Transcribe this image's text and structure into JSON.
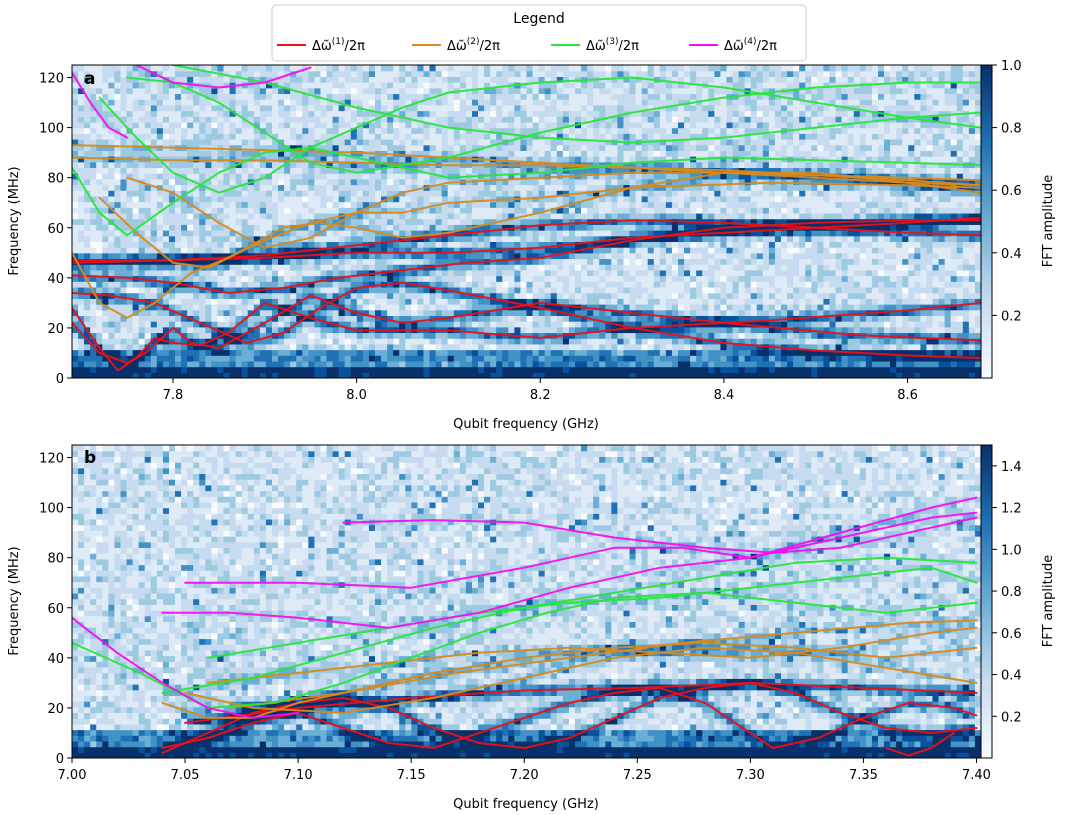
{
  "legend": {
    "title": "Legend",
    "entries": [
      {
        "label": "Δω̃(1)/2π",
        "base": "Δω̃",
        "sup": "(1)",
        "tail": "/2π",
        "color": "#e8121a"
      },
      {
        "label": "Δω̃(2)/2π",
        "base": "Δω̃",
        "sup": "(2)",
        "tail": "/2π",
        "color": "#d68a1f"
      },
      {
        "label": "Δω̃(3)/2π",
        "base": "Δω̃",
        "sup": "(3)",
        "tail": "/2π",
        "color": "#27e63a"
      },
      {
        "label": "Δω̃(4)/2π",
        "base": "Δω̃",
        "sup": "(4)",
        "tail": "/2π",
        "color": "#f50ff0"
      }
    ]
  },
  "chart_data": [
    {
      "panel": "a",
      "type": "heatmap",
      "xlabel": "Qubit frequency (GHz)",
      "ylabel": "Frequency (MHz)",
      "colorbar_label": "FFT amplitude",
      "colormap": "Blues",
      "xlim": [
        7.69,
        8.68
      ],
      "ylim": [
        0,
        125
      ],
      "xticks": [
        7.8,
        8.0,
        8.2,
        8.4,
        8.6
      ],
      "xtick_labels": [
        "7.8",
        "8.0",
        "8.2",
        "8.4",
        "8.6"
      ],
      "yticks": [
        0,
        20,
        40,
        60,
        80,
        100,
        120
      ],
      "ytick_labels": [
        "0",
        "20",
        "40",
        "60",
        "80",
        "100",
        "120"
      ],
      "colorbar_range": [
        0,
        1.0
      ],
      "colorbar_ticks": [
        0.2,
        0.4,
        0.6,
        0.8,
        1.0
      ],
      "colorbar_tick_labels": [
        "0.2",
        "0.4",
        "0.6",
        "0.8",
        "1.0"
      ],
      "series": [
        {
          "order": 1,
          "x": [
            7.69,
            7.72,
            7.74,
            7.76,
            7.78,
            7.8,
            7.83,
            7.86,
            7.9,
            7.95,
            8.0,
            8.1,
            8.2,
            8.3,
            8.45,
            8.6,
            8.68
          ],
          "y": [
            28,
            12,
            3,
            8,
            16,
            14,
            13,
            18,
            30,
            24,
            19,
            19,
            16,
            20,
            23,
            27,
            30
          ]
        },
        {
          "order": 1,
          "x": [
            7.69,
            7.72,
            7.75,
            7.77,
            7.8,
            7.82,
            7.85,
            7.9,
            7.95,
            8.0,
            8.05,
            8.1,
            8.2,
            8.3,
            8.4,
            8.55,
            8.68
          ],
          "y": [
            22,
            10,
            6,
            10,
            20,
            14,
            12,
            22,
            33,
            26,
            22,
            24,
            30,
            26,
            22,
            17,
            15
          ]
        },
        {
          "order": 1,
          "x": [
            7.69,
            7.73,
            7.78,
            7.83,
            7.88,
            7.92,
            7.96,
            8.0,
            8.05,
            8.1,
            8.2,
            8.3,
            8.4,
            8.5,
            8.6,
            8.68
          ],
          "y": [
            34,
            33,
            30,
            22,
            14,
            18,
            28,
            36,
            38,
            35,
            28,
            20,
            14,
            11,
            9,
            8
          ]
        },
        {
          "order": 1,
          "x": [
            7.69,
            7.75,
            7.8,
            7.86,
            7.92,
            7.98,
            8.05,
            8.12,
            8.2,
            8.3,
            8.4,
            8.5,
            8.6,
            8.68
          ],
          "y": [
            41,
            40,
            38,
            34,
            36,
            40,
            43,
            46,
            48,
            55,
            60,
            62,
            63,
            63
          ]
        },
        {
          "order": 1,
          "x": [
            7.69,
            7.8,
            7.9,
            8.0,
            8.1,
            8.2,
            8.3,
            8.4,
            8.5,
            8.6,
            8.68
          ],
          "y": [
            47,
            47,
            48,
            50,
            50,
            52,
            56,
            58,
            60,
            62,
            64
          ]
        },
        {
          "order": 1,
          "x": [
            7.69,
            7.8,
            7.9,
            8.0,
            8.1,
            8.2,
            8.3,
            8.4,
            8.5,
            8.6,
            8.68
          ],
          "y": [
            46,
            47,
            49,
            53,
            57,
            61,
            63,
            62,
            60,
            58,
            57
          ]
        },
        {
          "order": 2,
          "x": [
            7.69,
            7.72,
            7.75,
            7.78,
            7.82,
            7.86,
            7.9,
            7.95,
            8.0,
            8.05,
            8.1,
            8.2,
            8.3,
            8.45,
            8.6,
            8.68
          ],
          "y": [
            50,
            30,
            24,
            30,
            42,
            48,
            55,
            62,
            66,
            66,
            70,
            72,
            76,
            78,
            77,
            76
          ]
        },
        {
          "order": 2,
          "x": [
            7.72,
            7.76,
            7.8,
            7.84,
            7.88,
            7.92,
            7.96,
            8.0,
            8.05,
            8.1,
            8.2,
            8.3,
            8.4,
            8.5,
            8.6,
            8.68
          ],
          "y": [
            72,
            58,
            46,
            44,
            52,
            60,
            62,
            60,
            56,
            58,
            66,
            76,
            82,
            82,
            78,
            74
          ]
        },
        {
          "order": 2,
          "x": [
            7.75,
            7.8,
            7.85,
            7.9,
            7.95,
            8.0,
            8.05,
            8.1,
            8.2,
            8.3,
            8.4,
            8.5,
            8.6,
            8.68
          ],
          "y": [
            80,
            74,
            62,
            52,
            56,
            66,
            74,
            78,
            80,
            82,
            82,
            80,
            78,
            77
          ]
        },
        {
          "order": 2,
          "x": [
            7.69,
            7.8,
            7.9,
            8.0,
            8.1,
            8.2,
            8.3,
            8.4,
            8.5,
            8.6,
            8.68
          ],
          "y": [
            93,
            92,
            91,
            90,
            88,
            86,
            84,
            82,
            81,
            80,
            79
          ]
        },
        {
          "order": 2,
          "x": [
            7.69,
            7.8,
            7.9,
            8.0,
            8.1,
            8.2,
            8.3,
            8.4,
            8.5,
            8.6,
            8.68
          ],
          "y": [
            88,
            87,
            87,
            86,
            85,
            85,
            84,
            83,
            81,
            79,
            77
          ]
        },
        {
          "order": 3,
          "x": [
            7.69,
            7.72,
            7.75,
            7.8,
            7.85,
            7.9,
            7.95,
            8.0,
            8.1,
            8.2,
            8.3,
            8.4,
            8.5,
            8.6,
            8.68
          ],
          "y": [
            84,
            66,
            57,
            70,
            82,
            90,
            92,
            88,
            80,
            82,
            86,
            88,
            87,
            86,
            85
          ]
        },
        {
          "order": 3,
          "x": [
            7.72,
            7.76,
            7.8,
            7.85,
            7.9,
            7.95,
            8.0,
            8.05,
            8.1,
            8.2,
            8.3,
            8.4,
            8.5,
            8.6,
            8.68
          ],
          "y": [
            112,
            96,
            82,
            74,
            80,
            92,
            100,
            108,
            114,
            118,
            120,
            116,
            110,
            104,
            100
          ]
        },
        {
          "order": 3,
          "x": [
            7.75,
            7.8,
            7.85,
            7.9,
            7.95,
            8.0,
            8.1,
            8.2,
            8.3,
            8.4,
            8.5,
            8.6,
            8.68
          ],
          "y": [
            120,
            118,
            110,
            98,
            86,
            82,
            88,
            98,
            106,
            112,
            116,
            118,
            118
          ]
        },
        {
          "order": 3,
          "x": [
            7.8,
            7.9,
            8.0,
            8.1,
            8.2,
            8.3,
            8.4,
            8.5,
            8.6,
            8.68
          ],
          "y": [
            125,
            118,
            108,
            100,
            96,
            94,
            96,
            100,
            104,
            106
          ]
        },
        {
          "order": 4,
          "x": [
            7.69,
            7.71,
            7.73,
            7.75
          ],
          "y": [
            122,
            110,
            100,
            96
          ]
        },
        {
          "order": 4,
          "x": [
            7.76,
            7.8,
            7.85,
            7.9,
            7.95
          ],
          "y": [
            125,
            118,
            116,
            118,
            124
          ]
        }
      ]
    },
    {
      "panel": "b",
      "type": "heatmap",
      "xlabel": "Qubit frequency (GHz)",
      "ylabel": "Frequency (MHz)",
      "colorbar_label": "FFT amplitude",
      "colormap": "Blues",
      "xlim": [
        7.0,
        7.402
      ],
      "ylim": [
        0,
        125
      ],
      "xticks": [
        7.0,
        7.05,
        7.1,
        7.15,
        7.2,
        7.25,
        7.3,
        7.35,
        7.4
      ],
      "xtick_labels": [
        "7.00",
        "7.05",
        "7.10",
        "7.15",
        "7.20",
        "7.25",
        "7.30",
        "7.35",
        "7.40"
      ],
      "yticks": [
        0,
        20,
        40,
        60,
        80,
        100,
        120
      ],
      "ytick_labels": [
        "0",
        "20",
        "40",
        "60",
        "80",
        "100",
        "120"
      ],
      "colorbar_range": [
        0,
        1.5
      ],
      "colorbar_ticks": [
        0.2,
        0.4,
        0.6,
        0.8,
        1.0,
        1.2,
        1.4
      ],
      "colorbar_tick_labels": [
        "0.2",
        "0.4",
        "0.6",
        "0.8",
        "1.0",
        "1.2",
        "1.4"
      ],
      "series": [
        {
          "order": 1,
          "x": [
            7.04,
            7.06,
            7.08,
            7.1,
            7.12,
            7.14,
            7.16,
            7.18,
            7.2,
            7.22,
            7.24,
            7.26,
            7.28,
            7.3,
            7.31,
            7.33,
            7.35,
            7.37,
            7.39,
            7.4
          ],
          "y": [
            4,
            8,
            14,
            18,
            12,
            6,
            4,
            10,
            16,
            22,
            26,
            28,
            22,
            10,
            4,
            8,
            16,
            22,
            20,
            17
          ]
        },
        {
          "order": 1,
          "x": [
            7.04,
            7.06,
            7.08,
            7.1,
            7.12,
            7.14,
            7.16,
            7.18,
            7.2,
            7.22,
            7.24,
            7.26,
            7.28,
            7.3,
            7.32,
            7.34,
            7.36,
            7.38,
            7.4
          ],
          "y": [
            2,
            10,
            18,
            22,
            24,
            20,
            12,
            6,
            4,
            8,
            16,
            24,
            28,
            30,
            26,
            18,
            12,
            10,
            12
          ]
        },
        {
          "order": 1,
          "x": [
            7.05,
            7.1,
            7.15,
            7.2,
            7.25,
            7.3,
            7.35,
            7.4
          ],
          "y": [
            14,
            20,
            24,
            27,
            28,
            30,
            28,
            26
          ]
        },
        {
          "order": 1,
          "x": [
            7.36,
            7.37,
            7.38,
            7.39
          ],
          "y": [
            4,
            1,
            4,
            10
          ]
        },
        {
          "order": 2,
          "x": [
            7.04,
            7.06,
            7.08,
            7.1,
            7.13,
            7.16,
            7.2,
            7.24,
            7.28,
            7.32,
            7.36,
            7.4
          ],
          "y": [
            22,
            16,
            16,
            22,
            28,
            34,
            40,
            44,
            46,
            44,
            40,
            44
          ]
        },
        {
          "order": 2,
          "x": [
            7.05,
            7.08,
            7.12,
            7.16,
            7.2,
            7.24,
            7.28,
            7.32,
            7.36,
            7.4
          ],
          "y": [
            26,
            20,
            18,
            24,
            32,
            40,
            44,
            42,
            36,
            30
          ]
        },
        {
          "order": 2,
          "x": [
            7.06,
            7.1,
            7.14,
            7.18,
            7.22,
            7.26,
            7.3,
            7.34,
            7.38,
            7.4
          ],
          "y": [
            30,
            34,
            38,
            42,
            44,
            42,
            40,
            44,
            50,
            52
          ]
        },
        {
          "order": 2,
          "x": [
            7.07,
            7.12,
            7.17,
            7.22,
            7.27,
            7.32,
            7.37,
            7.4
          ],
          "y": [
            20,
            26,
            34,
            40,
            46,
            50,
            54,
            55
          ]
        },
        {
          "order": 3,
          "x": [
            7.0,
            7.03,
            7.06,
            7.09,
            7.12,
            7.15,
            7.18,
            7.21,
            7.24,
            7.28,
            7.32,
            7.36,
            7.4
          ],
          "y": [
            46,
            34,
            20,
            22,
            30,
            40,
            50,
            58,
            64,
            66,
            62,
            58,
            62
          ]
        },
        {
          "order": 3,
          "x": [
            7.04,
            7.08,
            7.12,
            7.16,
            7.2,
            7.24,
            7.28,
            7.32,
            7.36,
            7.4
          ],
          "y": [
            26,
            32,
            42,
            52,
            60,
            66,
            72,
            78,
            80,
            78
          ]
        },
        {
          "order": 3,
          "x": [
            7.06,
            7.1,
            7.14,
            7.18,
            7.22,
            7.26,
            7.3,
            7.34,
            7.38,
            7.4
          ],
          "y": [
            40,
            46,
            52,
            58,
            62,
            64,
            68,
            72,
            76,
            70
          ]
        },
        {
          "order": 4,
          "x": [
            7.0,
            7.02,
            7.04,
            7.06,
            7.08,
            7.1
          ],
          "y": [
            56,
            42,
            30,
            20,
            16,
            18
          ]
        },
        {
          "order": 4,
          "x": [
            7.04,
            7.07,
            7.1,
            7.14,
            7.18,
            7.22,
            7.26,
            7.3,
            7.34,
            7.38,
            7.4
          ],
          "y": [
            58,
            58,
            56,
            52,
            58,
            68,
            76,
            80,
            88,
            96,
            98
          ]
        },
        {
          "order": 4,
          "x": [
            7.05,
            7.1,
            7.15,
            7.2,
            7.24,
            7.27,
            7.3,
            7.34,
            7.38,
            7.4
          ],
          "y": [
            70,
            70,
            68,
            76,
            84,
            84,
            80,
            90,
            100,
            104
          ]
        },
        {
          "order": 4,
          "x": [
            7.12,
            7.16,
            7.2,
            7.24,
            7.28,
            7.31,
            7.34,
            7.38,
            7.4
          ],
          "y": [
            94,
            95,
            94,
            88,
            84,
            82,
            84,
            92,
            96
          ]
        }
      ]
    }
  ]
}
